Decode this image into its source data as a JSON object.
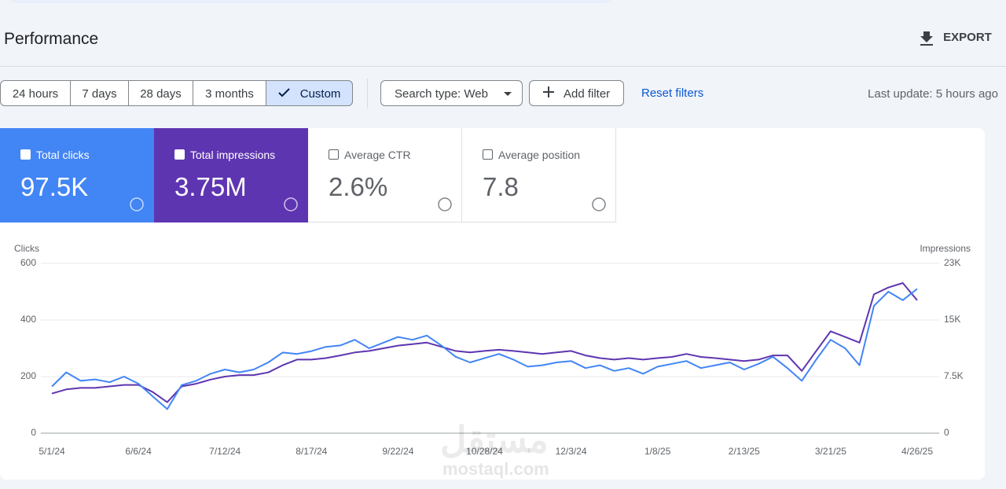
{
  "header": {
    "title": "Performance",
    "export": "EXPORT"
  },
  "toolbar": {
    "ranges": [
      "24 hours",
      "7 days",
      "28 days",
      "3 months",
      "Custom"
    ],
    "search_type": "Search type: Web",
    "add_filter": "Add filter",
    "reset": "Reset filters",
    "last_update": "Last update: 5 hours ago"
  },
  "metrics": [
    {
      "label": "Total clicks",
      "value": "97.5K"
    },
    {
      "label": "Total impressions",
      "value": "3.75M"
    },
    {
      "label": "Average CTR",
      "value": "2.6%"
    },
    {
      "label": "Average position",
      "value": "7.8"
    }
  ],
  "watermark": {
    "arabic": "مستقل",
    "latin": "mostaql.com"
  },
  "chart_data": {
    "type": "line",
    "y_label": "Clicks",
    "y2_label": "Impressions",
    "x_labels": [
      "5/1/24",
      "6/6/24",
      "7/12/24",
      "8/17/24",
      "9/22/24",
      "10/28/24",
      "12/3/24",
      "1/8/25",
      "2/13/25",
      "3/21/25",
      "4/26/25"
    ],
    "ylim": [
      0,
      600
    ],
    "yticks": [
      0,
      200,
      400,
      600
    ],
    "y2lim": [
      0,
      22500
    ],
    "y2ticks": [
      0,
      {
        "value": 7500,
        "label": "7.5K"
      },
      {
        "value": 15000,
        "label": "15K"
      },
      {
        "value": 22500,
        "label": "23K"
      }
    ],
    "grid": true,
    "series": [
      {
        "name": "Clicks",
        "color": "#4285f4",
        "values": [
          165,
          215,
          185,
          190,
          180,
          200,
          175,
          130,
          85,
          170,
          185,
          210,
          225,
          215,
          225,
          250,
          285,
          280,
          290,
          305,
          310,
          330,
          300,
          320,
          340,
          330,
          345,
          310,
          270,
          250,
          265,
          280,
          260,
          235,
          240,
          250,
          255,
          230,
          240,
          220,
          230,
          210,
          235,
          245,
          255,
          230,
          240,
          250,
          225,
          245,
          270,
          230,
          185,
          260,
          330,
          300,
          240,
          450,
          500,
          470,
          510
        ]
      },
      {
        "name": "Impressions",
        "color": "#5e35b1",
        "axis": "y2",
        "values": [
          5250,
          5800,
          6000,
          6000,
          6200,
          6400,
          6400,
          5450,
          4100,
          6200,
          6550,
          7100,
          7500,
          7700,
          7700,
          8050,
          9000,
          9750,
          9750,
          9950,
          10300,
          10700,
          10900,
          11250,
          11600,
          11800,
          12000,
          11450,
          10900,
          10700,
          10900,
          11050,
          10900,
          10700,
          10500,
          10700,
          10900,
          10300,
          9950,
          9750,
          9950,
          9750,
          9950,
          10100,
          10500,
          10100,
          9950,
          9750,
          9550,
          9750,
          10300,
          10300,
          8250,
          10900,
          13500,
          12750,
          12000,
          18400,
          19300,
          19900,
          17600
        ]
      }
    ]
  }
}
